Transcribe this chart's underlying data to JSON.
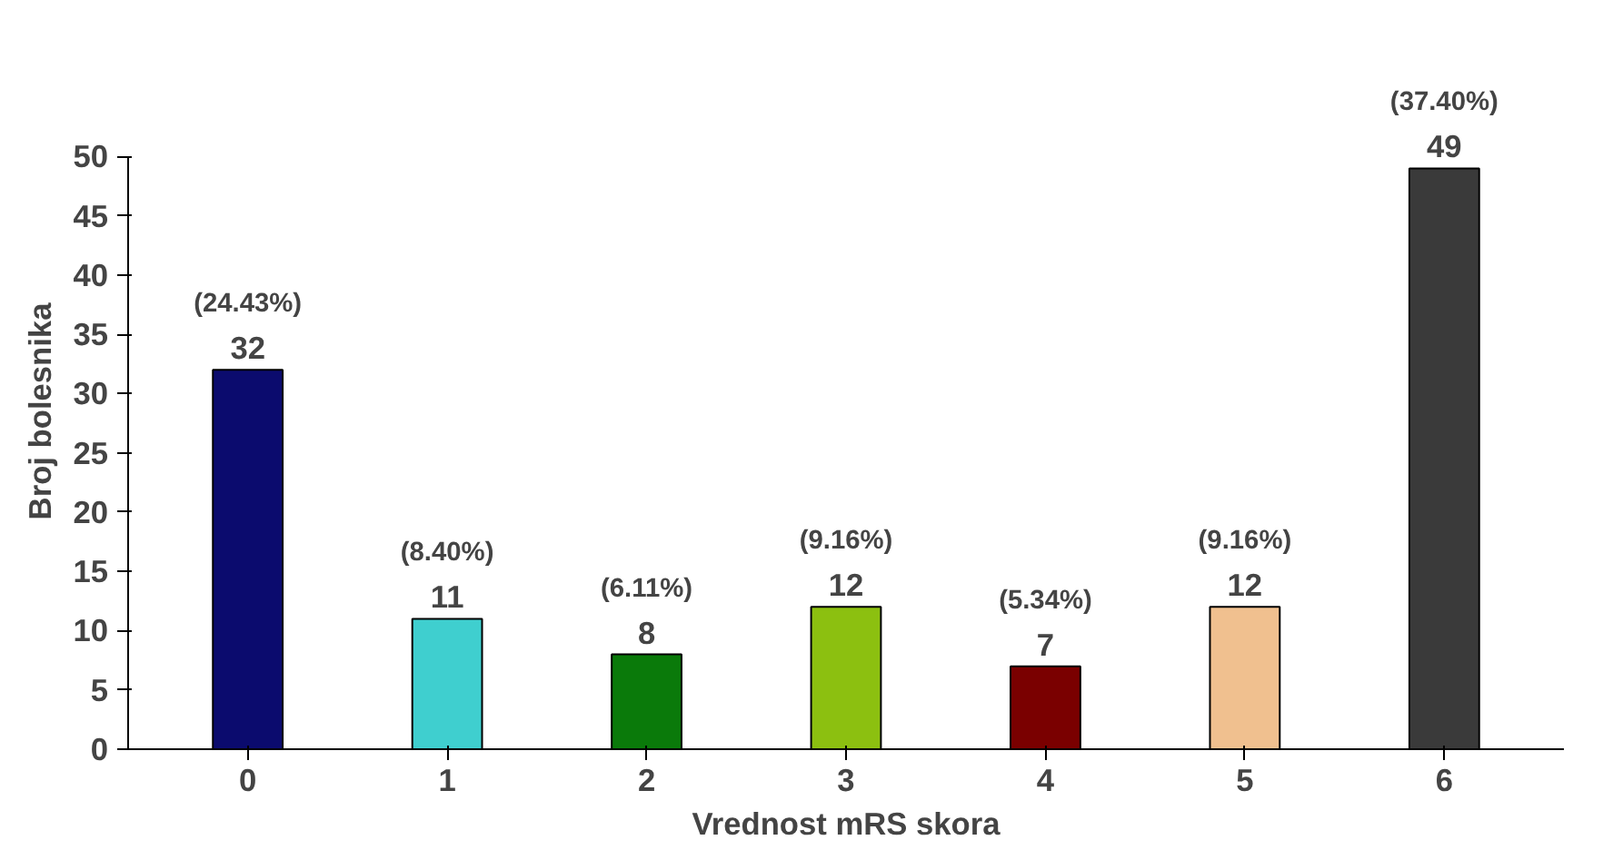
{
  "chart_data": {
    "type": "bar",
    "xlabel": "Vrednost mRS skora",
    "ylabel": "Broj bolesnika",
    "categories": [
      "0",
      "1",
      "2",
      "3",
      "4",
      "5",
      "6"
    ],
    "values": [
      32,
      11,
      8,
      12,
      7,
      12,
      49
    ],
    "colors": [
      "#0b0b6e",
      "#3fcfcf",
      "#0a7a0a",
      "#8cc010",
      "#7a0000",
      "#f0c08f",
      "#3a3a3a"
    ],
    "ylim": [
      0,
      50
    ],
    "yticks": [
      0,
      5,
      10,
      15,
      20,
      25,
      30,
      35,
      40,
      45,
      50
    ],
    "grid": false,
    "data_labels": true,
    "annotations": [
      {
        "text": "(24.43%)",
        "x": "0",
        "y": 32
      },
      {
        "text": "(8.40%)",
        "x": "1",
        "y": 11
      },
      {
        "text": "(6.11%)",
        "x": "2",
        "y": 8
      },
      {
        "text": "(9.16%)",
        "x": "3",
        "y": 12
      },
      {
        "text": "(5.34%)",
        "x": "4",
        "y": 7
      },
      {
        "text": "(9.16%)",
        "x": "5",
        "y": 12
      },
      {
        "text": "(37.40%)",
        "x": "6",
        "y": 49
      }
    ]
  }
}
